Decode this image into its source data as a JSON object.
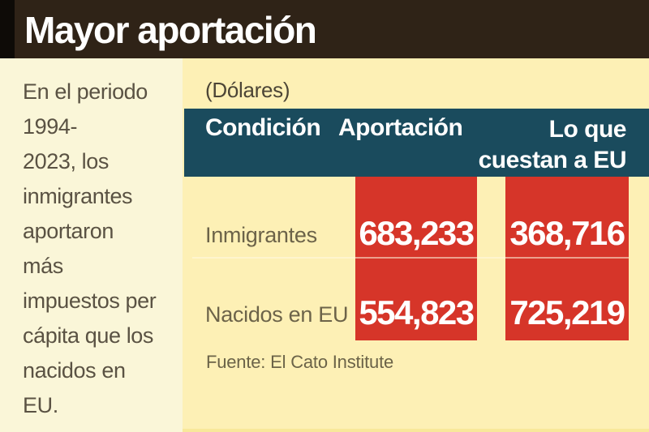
{
  "header": {
    "title": "Mayor aportación"
  },
  "sidebar": {
    "text": "En el periodo\n1994-\n2023, los\ninmigrantes\naportaron\nmás\nimpuestos per\ncápita que los\nnacidos en\nEU."
  },
  "main": {
    "units_label": "(Dólares)",
    "table": {
      "header": {
        "condition": "Condición",
        "contribution": "Aportación",
        "cost_lines": "Lo que\ncuestan a EU"
      },
      "rows": [
        {
          "label": "Inmigrantes",
          "contribution": "683,233",
          "cost": "368,716"
        },
        {
          "label": "Nacidos en EU",
          "contribution": "554,823",
          "cost": "725,219"
        }
      ]
    },
    "source": "Fuente: El Cato Institute"
  },
  "colors": {
    "header_bg": "#2f2317",
    "left_edge": "#0e0b07",
    "sidebar_bg": "#faf6d8",
    "main_bg": "#fdf0b5",
    "table_header_bg": "#1a4b5d",
    "value_box_red": "#d63529",
    "text_dark": "#5a5243",
    "text_white": "#ffffff"
  },
  "chart_data": {
    "type": "table",
    "title": "Mayor aportación",
    "subtitle": "(Dólares)",
    "columns": [
      "Condición",
      "Aportación",
      "Lo que cuestan a EU"
    ],
    "categories": [
      "Inmigrantes",
      "Nacidos en EU"
    ],
    "series": [
      {
        "name": "Aportación",
        "values": [
          683233,
          554823
        ]
      },
      {
        "name": "Lo que cuestan a EU",
        "values": [
          368716,
          725219
        ]
      }
    ],
    "annotation": "En el periodo 1994-2023, los inmigrantes aportaron más impuestos per cápita que los nacidos en EU.",
    "source": "Fuente: El Cato Institute"
  }
}
